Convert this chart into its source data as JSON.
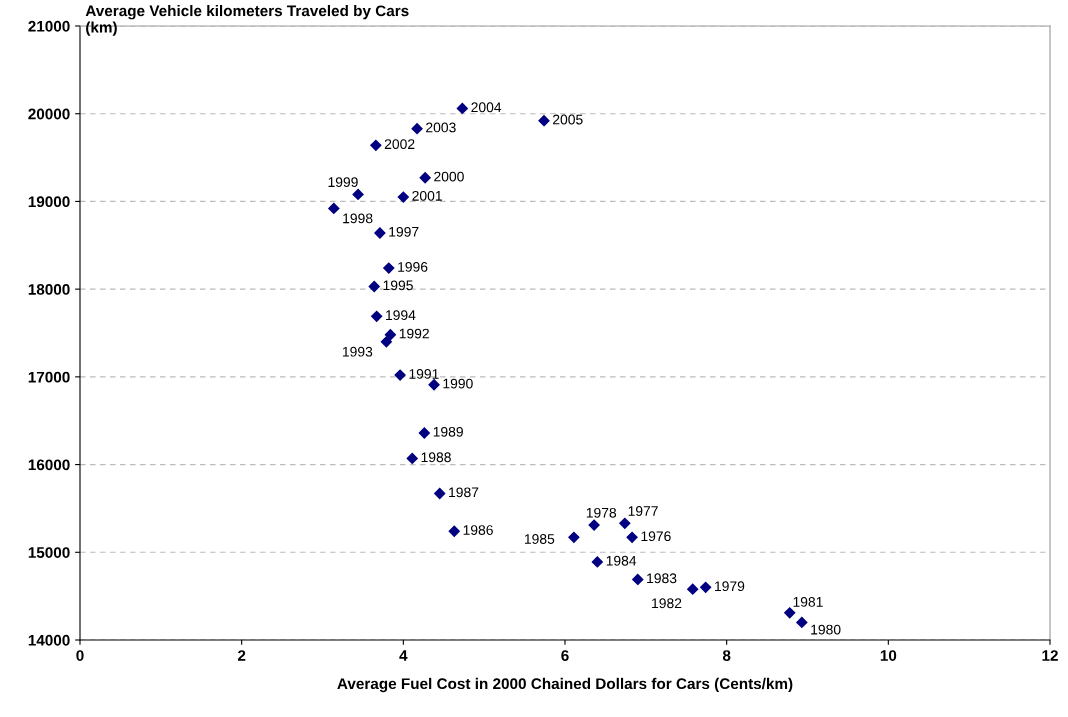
{
  "chart_data": {
    "type": "scatter",
    "ylabel": "Average Vehicle kilometers Traveled by Cars\n(km)",
    "xlabel": "Average Fuel Cost in 2000 Chained Dollars for Cars (Cents/km)",
    "x": [
      4.73,
      5.74,
      4.17,
      3.66,
      4.27,
      3.44,
      4.0,
      3.14,
      3.71,
      3.82,
      3.64,
      3.67,
      3.84,
      3.79,
      3.96,
      4.38,
      4.26,
      4.11,
      4.45,
      4.63,
      6.36,
      6.74,
      6.11,
      6.83,
      6.4,
      6.9,
      7.74,
      7.58,
      8.78,
      8.93
    ],
    "values": [
      20060,
      19920,
      19830,
      19640,
      19270,
      19080,
      19050,
      18920,
      18640,
      18240,
      18030,
      17690,
      17480,
      17400,
      17020,
      16910,
      16360,
      16070,
      15670,
      15240,
      15310,
      15330,
      15170,
      15170,
      14890,
      14690,
      14600,
      14580,
      14310,
      14200
    ],
    "color": "#000080",
    "marker": "diamond",
    "grid": "y",
    "legend": false,
    "xlim": [
      0,
      12
    ],
    "xticks": [
      0,
      2,
      4,
      6,
      8,
      10,
      12
    ],
    "ylim": [
      14000,
      21000
    ],
    "yticks": [
      14000,
      15000,
      16000,
      17000,
      18000,
      19000,
      20000,
      21000
    ],
    "annotations": [
      {
        "text": "2004",
        "x": 4.73,
        "y": 20060
      },
      {
        "text": "2005",
        "x": 5.74,
        "y": 19920
      },
      {
        "text": "2003",
        "x": 4.17,
        "y": 19830
      },
      {
        "text": "2002",
        "x": 3.66,
        "y": 19640
      },
      {
        "text": "2000",
        "x": 4.27,
        "y": 19270
      },
      {
        "text": "1999",
        "x": 3.44,
        "y": 19080
      },
      {
        "text": "2001",
        "x": 4.0,
        "y": 19050
      },
      {
        "text": "1998",
        "x": 3.14,
        "y": 18920
      },
      {
        "text": "1997",
        "x": 3.71,
        "y": 18640
      },
      {
        "text": "1996",
        "x": 3.82,
        "y": 18240
      },
      {
        "text": "1995",
        "x": 3.64,
        "y": 18030
      },
      {
        "text": "1994",
        "x": 3.67,
        "y": 17690
      },
      {
        "text": "1992",
        "x": 3.84,
        "y": 17480
      },
      {
        "text": "1993",
        "x": 3.79,
        "y": 17400
      },
      {
        "text": "1991",
        "x": 3.96,
        "y": 17020
      },
      {
        "text": "1990",
        "x": 4.38,
        "y": 16910
      },
      {
        "text": "1989",
        "x": 4.26,
        "y": 16360
      },
      {
        "text": "1988",
        "x": 4.11,
        "y": 16070
      },
      {
        "text": "1987",
        "x": 4.45,
        "y": 15670
      },
      {
        "text": "1986",
        "x": 4.63,
        "y": 15240
      },
      {
        "text": "1978",
        "x": 6.36,
        "y": 15310
      },
      {
        "text": "1977",
        "x": 6.74,
        "y": 15330
      },
      {
        "text": "1985",
        "x": 6.11,
        "y": 15170
      },
      {
        "text": "1976",
        "x": 6.83,
        "y": 15170
      },
      {
        "text": "1984",
        "x": 6.4,
        "y": 14890
      },
      {
        "text": "1983",
        "x": 6.9,
        "y": 14690
      },
      {
        "text": "1979",
        "x": 7.74,
        "y": 14600
      },
      {
        "text": "1982",
        "x": 7.58,
        "y": 14580
      },
      {
        "text": "1981",
        "x": 8.78,
        "y": 14310
      },
      {
        "text": "1980",
        "x": 8.93,
        "y": 14200
      }
    ]
  }
}
